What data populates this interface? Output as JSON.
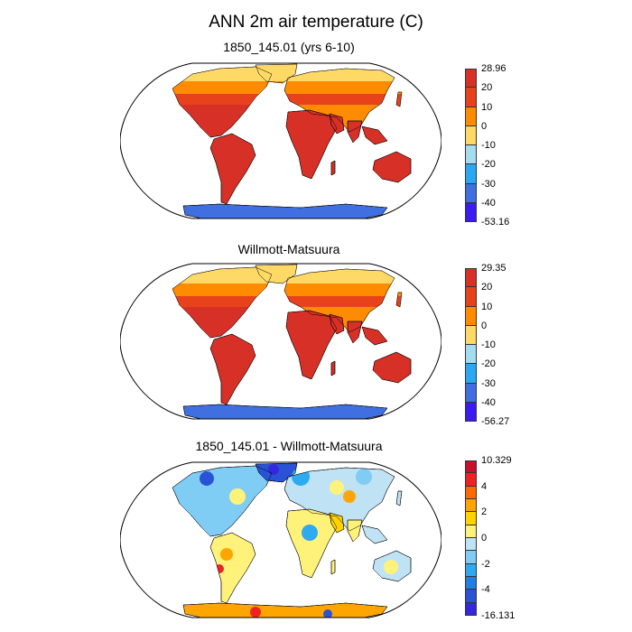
{
  "figure": {
    "title": "ANN 2m air temperature (C)"
  },
  "panels": [
    {
      "title": "1850_145.01 (yrs 6-10)",
      "kind": "model",
      "colorbar": {
        "labels": [
          "28.96",
          "20",
          "10",
          "0",
          "-10",
          "-20",
          "-30",
          "-40",
          "-53.16"
        ],
        "colors": [
          "#d73027",
          "#e8421c",
          "#ff8c00",
          "#ffd966",
          "#a6dcf0",
          "#2aa8f2",
          "#3f6fe0",
          "#3a1cf0"
        ],
        "max": 28.96,
        "min": -53.16
      }
    },
    {
      "title": "Willmott-Matsuura",
      "kind": "obs",
      "colorbar": {
        "labels": [
          "29.35",
          "20",
          "10",
          "0",
          "-10",
          "-20",
          "-30",
          "-40",
          "-56.27"
        ],
        "colors": [
          "#d73027",
          "#e8421c",
          "#ff8c00",
          "#ffd966",
          "#a6dcf0",
          "#2aa8f2",
          "#3f6fe0",
          "#3a1cf0"
        ],
        "max": 29.35,
        "min": -56.27
      }
    },
    {
      "title": "1850_145.01 - Willmott-Matsuura",
      "kind": "diff",
      "colorbar": {
        "labels": [
          "10.329",
          "",
          "4",
          "",
          "2",
          "",
          "0",
          "",
          "-2",
          "",
          "-4",
          "",
          "-16.131"
        ],
        "colors": [
          "#c8102e",
          "#ee2222",
          "#ff6a00",
          "#ffa500",
          "#ffd200",
          "#fff27a",
          "#bfe3f5",
          "#7fcdf5",
          "#2eaaf0",
          "#1f7fe6",
          "#2a52d6",
          "#3428dc"
        ],
        "max": 10.329,
        "min": -16.131
      }
    }
  ]
}
